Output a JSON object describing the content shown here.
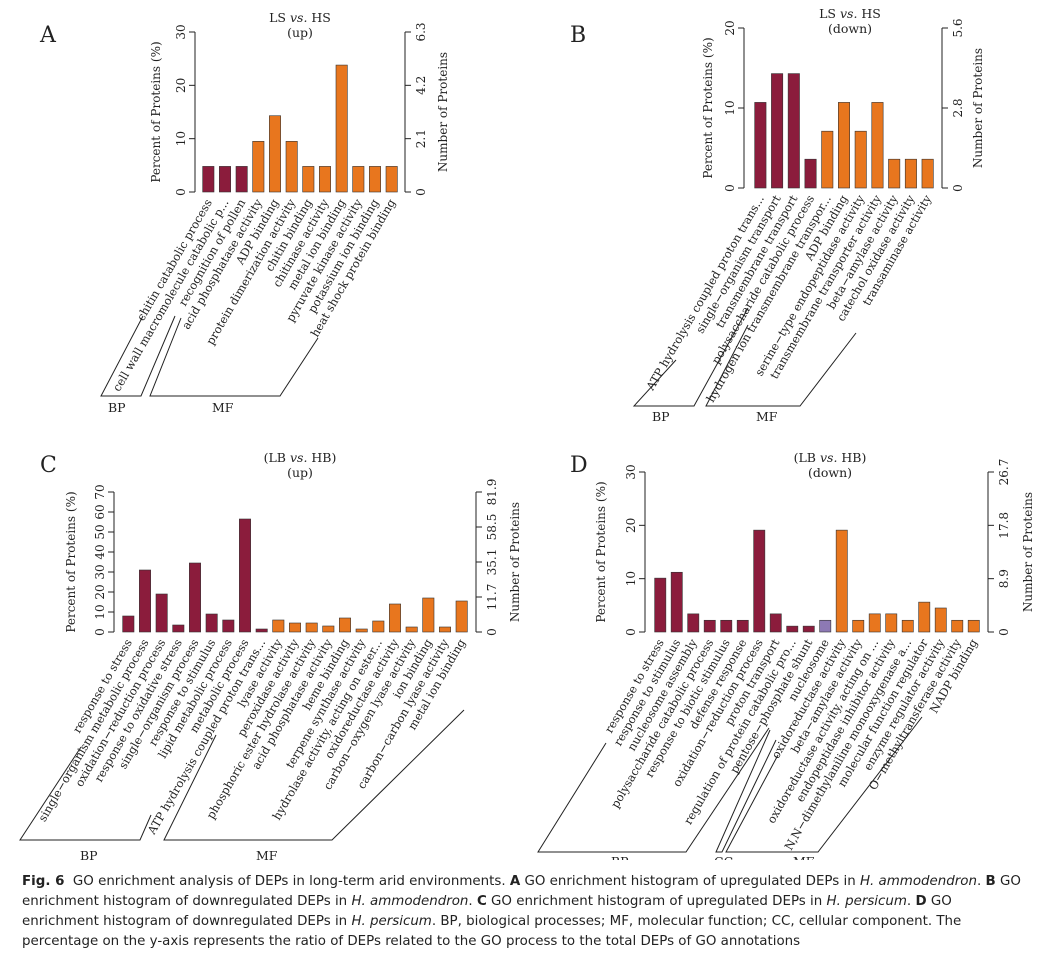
{
  "colors": {
    "bp": "#8b1c3c",
    "mf": "#e8761e",
    "cc": "#8d79b4",
    "axis": "#222222"
  },
  "chart_data": [
    {
      "type": "bar",
      "letter": "A",
      "title_prefix": "LS",
      "title_vs": "vs.",
      "title_suffix": "HS",
      "subtitle": "(up)",
      "ylabel": "Percent of Proteins (%)",
      "y2label": "Number of Proteins",
      "ylim": [
        0,
        30
      ],
      "yticks": [
        "0",
        "10",
        "20",
        "30"
      ],
      "y2ticks": [
        "0",
        "2.1",
        "4.2",
        "6.3"
      ],
      "categories": [
        "chitin catabolic process",
        "cell wall macromolecule catabolic p...",
        "recognition of pollen",
        "acid phosphatase activity",
        "ADP binding",
        "protein dimerization activity",
        "chitin binding",
        "chitinase activity",
        "metal ion binding",
        "pyruvate kinase activity",
        "potassium ion binding",
        "heat shock protein binding"
      ],
      "values": [
        4.8,
        4.8,
        4.8,
        9.5,
        14.3,
        9.5,
        4.8,
        4.8,
        23.8,
        4.8,
        4.8,
        4.8
      ],
      "groups": [
        "BP",
        "BP",
        "BP",
        "MF",
        "MF",
        "MF",
        "MF",
        "MF",
        "MF",
        "MF",
        "MF",
        "MF"
      ],
      "group_labels": [
        {
          "name": "BP",
          "text": "BP"
        },
        {
          "name": "MF",
          "text": "MF"
        }
      ]
    },
    {
      "type": "bar",
      "letter": "B",
      "title_prefix": "LS",
      "title_vs": "vs.",
      "title_suffix": "HS",
      "subtitle": "(down)",
      "ylabel": "Percent of Proteins (%)",
      "y2label": "Number of Proteins",
      "ylim": [
        0,
        20
      ],
      "yticks": [
        "0",
        "10",
        "20"
      ],
      "y2ticks": [
        "0",
        "2.8",
        "5.6"
      ],
      "categories": [
        "ATP hydrolysis coupled proton trans...",
        "single−organism transport",
        "transmembrane transport",
        "polysaccharide catabolic process",
        "hydrogen ion transmembrane transpor...",
        "ADP binding",
        "serine−type endopeptidase activity",
        "transmembrane transporter activity",
        "beta−amylase activity",
        "catechol oxidase activity",
        "transaminase activity"
      ],
      "values": [
        10.7,
        14.3,
        14.3,
        3.6,
        7.1,
        10.7,
        7.1,
        10.7,
        3.6,
        3.6,
        3.6
      ],
      "groups": [
        "BP",
        "BP",
        "BP",
        "BP",
        "MF",
        "MF",
        "MF",
        "MF",
        "MF",
        "MF",
        "MF"
      ],
      "group_labels": [
        {
          "name": "BP",
          "text": "BP"
        },
        {
          "name": "MF",
          "text": "MF"
        }
      ]
    },
    {
      "type": "bar",
      "letter": "C",
      "title_prefix": "(LB",
      "title_vs": "vs.",
      "title_suffix": "HB)",
      "subtitle": "(up)",
      "ylabel": "Percent of Proteins (%)",
      "y2label": "Number of Proteins",
      "ylim": [
        0,
        70
      ],
      "yticks": [
        "0",
        "10",
        "20",
        "30",
        "40",
        "50",
        "60",
        "70"
      ],
      "y2ticks": [
        "0",
        "11.7",
        "35.1",
        "58.5",
        "81.9"
      ],
      "categories": [
        "response to stress",
        "single−organism metabolic process",
        "oxidation−reduction process",
        "response to oxidative stress",
        "single−organism process",
        "response to stimulus",
        "lipid metabolic process",
        "metabolic process",
        "ATP hydrolysis coupled proton trans...",
        "lyase activity",
        "peroxidase activity",
        "phosphoric ester hydrolase activity",
        "acid phosphatase activity",
        "heme binding",
        "terpene synthase activity",
        "hydrolase activity, acting on ester...",
        "oxidoreductase activity",
        "carbon−oxygen lyase activity",
        "ion binding",
        "carbon−carbon lyase activity",
        "metal ion binding"
      ],
      "values": [
        8.0,
        31.0,
        19.0,
        3.5,
        34.5,
        9.0,
        6.0,
        56.5,
        1.5,
        6.0,
        4.5,
        4.5,
        3.0,
        7.0,
        1.5,
        5.5,
        14.0,
        2.5,
        17.0,
        2.5,
        15.5
      ],
      "groups": [
        "BP",
        "BP",
        "BP",
        "BP",
        "BP",
        "BP",
        "BP",
        "BP",
        "BP",
        "MF",
        "MF",
        "MF",
        "MF",
        "MF",
        "MF",
        "MF",
        "MF",
        "MF",
        "MF",
        "MF",
        "MF"
      ],
      "group_labels": [
        {
          "name": "BP",
          "text": "BP"
        },
        {
          "name": "MF",
          "text": "MF"
        }
      ]
    },
    {
      "type": "bar",
      "letter": "D",
      "title_prefix": "(LB",
      "title_vs": "vs.",
      "title_suffix": "HB)",
      "subtitle": "(down)",
      "ylabel": "Percent of Proteins (%)",
      "y2label": "Number of Proteins",
      "ylim": [
        0,
        30
      ],
      "yticks": [
        "0",
        "10",
        "20",
        "30"
      ],
      "y2ticks": [
        "0",
        "8.9",
        "17.8",
        "26.7"
      ],
      "categories": [
        "response to stress",
        "response to stimulus",
        "nucleosome assembly",
        "polysaccharide catabolic process",
        "response to biotic stimulus",
        "defense response",
        "oxidation−reduction process",
        "proton transport",
        "regulation of protein catabolic pro...",
        "pentose−phosphate shunt",
        "nucleosome",
        "oxidoreductase activity",
        "beta−amylase activity",
        "oxidoreductase activity, acting on ...",
        "endopeptidase inhibitor activity",
        "N,N−dimethylaniline monooxygenase a...",
        "molecular function regulator",
        "enzyme regulator activity",
        "O−methyltransferase activity",
        "NADP binding"
      ],
      "values": [
        10.1,
        11.2,
        3.4,
        2.2,
        2.2,
        2.2,
        19.1,
        3.4,
        1.1,
        1.1,
        2.2,
        19.1,
        2.2,
        3.4,
        3.4,
        2.2,
        5.6,
        4.5,
        2.2,
        2.2
      ],
      "groups": [
        "BP",
        "BP",
        "BP",
        "BP",
        "BP",
        "BP",
        "BP",
        "BP",
        "BP",
        "BP",
        "CC",
        "MF",
        "MF",
        "MF",
        "MF",
        "MF",
        "MF",
        "MF",
        "MF",
        "MF"
      ],
      "group_labels": [
        {
          "name": "BP",
          "text": "BP"
        },
        {
          "name": "CC",
          "text": "CC"
        },
        {
          "name": "MF",
          "text": "MF"
        }
      ]
    }
  ],
  "caption": {
    "fig_label": "Fig. 6",
    "lead": "GO enrichment analysis of DEPs in long-term arid environments.",
    "panel_a_label": "A",
    "panel_a_text": "GO enrichment histogram of upregulated DEPs in",
    "panel_a_species": "H. ammodendron",
    "panel_b_label": "B",
    "panel_b_text": "GO enrichment histogram of downregulated DEPs in",
    "panel_b_species": "H. ammodendron",
    "panel_c_label": "C",
    "panel_c_text": "GO enrichment histogram of upregulated DEPs in",
    "panel_c_species": "H. persicum",
    "panel_d_label": "D",
    "panel_d_text": "GO enrichment histogram of downregulated DEPs in",
    "panel_d_species": "H. persicum",
    "abbrev": "BP, biological processes; MF, molecular function; CC, cellular component. The percentage on the y-axis represents the ratio of DEPs related to the GO process to the total DEPs of GO annotations"
  }
}
